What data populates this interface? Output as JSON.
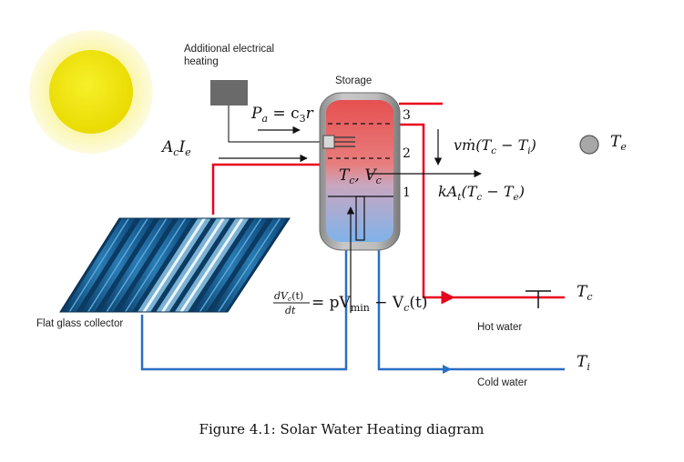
{
  "labels": {
    "additional_heating_line1": "Additional electrical",
    "additional_heating_line2": "heating",
    "storage": "Storage",
    "flat_glass_collector": "Flat glass collector",
    "hot_water": "Hot water",
    "cold_water": "Cold water"
  },
  "equations": {
    "pa_lhs": "P",
    "pa_sub": "a",
    "pa_rhs": " = c",
    "pa_rhs_sub": "3",
    "pa_rhs_end": "r",
    "ac_ie": "A",
    "ac_sub": "c",
    "ie": "I",
    "ie_sub": "e",
    "flow_loss": "vṁ(T",
    "flow_loss_c": "c",
    "flow_loss_mid": " − T",
    "flow_loss_i": "i",
    "flow_loss_end": ")",
    "te": "T",
    "te_sub": "e",
    "tank_state": "T",
    "tank_state_c": "c",
    "tank_state_mid": ", V",
    "tank_state_vc": "c",
    "heat_loss": "kA",
    "heat_loss_t": "t",
    "heat_loss_mid": "(T",
    "heat_loss_c": "c",
    "heat_loss_mid2": " − T",
    "heat_loss_e": "e",
    "heat_loss_end": ")",
    "dv_num": "dV",
    "dv_num_c": "c",
    "dv_num_end": "(t)",
    "dv_den": "dt",
    "dv_rhs": " = pV",
    "dv_rhs_min": "min",
    "dv_rhs_mid": " − V",
    "dv_rhs_c": "c",
    "dv_rhs_end": "(t)",
    "tc_out": "T",
    "tc_out_sub": "c",
    "ti_in": "T",
    "ti_in_sub": "i"
  },
  "layer_numbers": [
    "3",
    "2",
    "1"
  ],
  "caption": "Figure 4.1: Solar Water Heating diagram",
  "colors": {
    "hot_pipe": "#e8001c",
    "cold_pipe": "#2a6fc4",
    "sun_core": "#f2e600",
    "sun_halo": "#fbf7b0",
    "heater_box": "#6a6a6a",
    "tank_hot": "#e85a5a",
    "tank_cold": "#8ab6e6",
    "ambient_dot": "#a8a8a8"
  }
}
